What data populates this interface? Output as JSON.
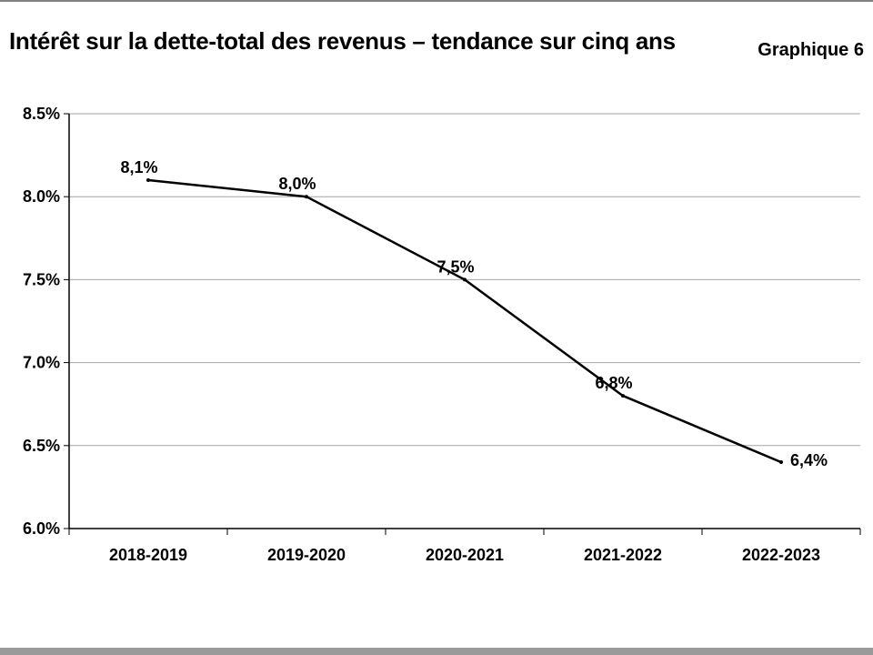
{
  "header": {
    "title": "Intérêt sur la dette-total des revenus – tendance sur cinq ans",
    "figure_label": "Graphique 6"
  },
  "chart_data": {
    "type": "line",
    "title": "Intérêt sur la dette-total des revenus – tendance sur cinq ans",
    "categories": [
      "2018-2019",
      "2019-2020",
      "2020-2021",
      "2021-2022",
      "2022-2023"
    ],
    "series": [
      {
        "name": "Intérêt sur la dette-total des revenus",
        "values": [
          8.1,
          8.0,
          7.5,
          6.8,
          6.4
        ],
        "labels": [
          "8,1%",
          "8,0%",
          "7,5%",
          "6,8%",
          "6,4%"
        ]
      }
    ],
    "xlabel": "",
    "ylabel": "",
    "ylim": [
      6.0,
      8.5
    ],
    "yticks": [
      6.0,
      6.5,
      7.0,
      7.5,
      8.0,
      8.5
    ],
    "ytick_labels": [
      "6.0%",
      "6.5%",
      "7.0%",
      "7.5%",
      "8.0%",
      "8.5%"
    ],
    "grid": true,
    "line_color": "#000000",
    "grid_color": "#a6a6a6"
  }
}
